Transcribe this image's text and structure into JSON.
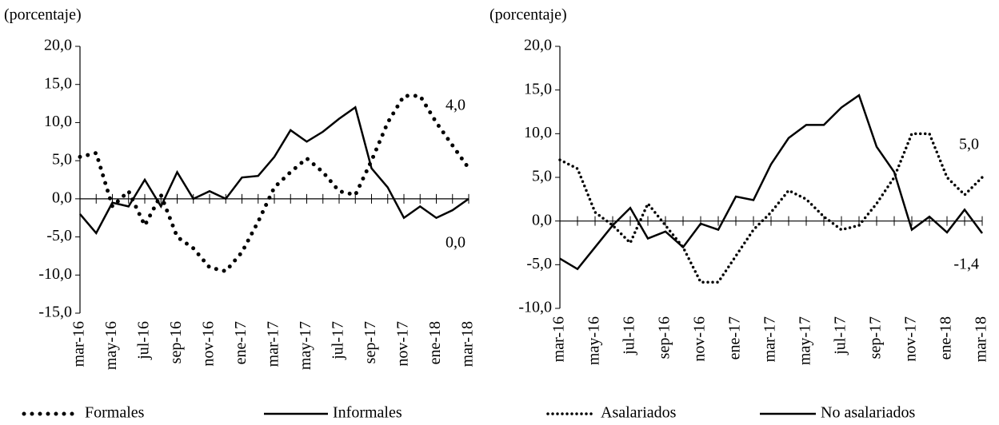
{
  "chart_data": [
    {
      "type": "line",
      "y_label": "(porcentaje)",
      "categories": [
        "mar-16",
        null,
        "may-16",
        null,
        "jul-16",
        null,
        "sep-16",
        null,
        "nov-16",
        null,
        "ene-17",
        null,
        "mar-17",
        null,
        "may-17",
        null,
        "jul-17",
        null,
        "sep-17",
        null,
        "nov-17",
        null,
        "ene-18",
        null,
        "mar-18"
      ],
      "ylim": [
        -15,
        20
      ],
      "yticks": [
        {
          "value": -15,
          "label": "-15,0"
        },
        {
          "value": -10,
          "label": "-10,0"
        },
        {
          "value": -5,
          "label": "-5,0"
        },
        {
          "value": 0,
          "label": "0,0"
        },
        {
          "value": 5,
          "label": "5,0"
        },
        {
          "value": 10,
          "label": "10,0"
        },
        {
          "value": 15,
          "label": "15,0"
        },
        {
          "value": 20,
          "label": "20,0"
        }
      ],
      "series": [
        {
          "name": "Formales",
          "color": "#000000",
          "style": "dotted",
          "values": [
            5.5,
            6.0,
            -1.0,
            1.0,
            -3.5,
            0.5,
            -5.0,
            -6.5,
            -9.0,
            -9.5,
            -7.0,
            -3.0,
            1.5,
            3.5,
            5.3,
            3.5,
            1.0,
            0.5,
            5.0,
            10.0,
            13.5,
            13.5,
            10.0,
            7.0,
            4.0
          ],
          "value_labels": [
            null,
            null,
            null,
            null,
            null,
            null,
            null,
            null,
            null,
            null,
            null,
            null,
            null,
            null,
            null,
            null,
            null,
            null,
            null,
            null,
            null,
            null,
            null,
            null,
            "4,0"
          ]
        },
        {
          "name": "Informales",
          "color": "#000000",
          "style": "solid",
          "values": [
            -2.0,
            -4.5,
            -0.5,
            -1.0,
            2.5,
            -1.0,
            3.5,
            0.0,
            1.0,
            0.0,
            2.8,
            3.0,
            5.5,
            9.0,
            7.5,
            8.8,
            10.5,
            12.0,
            4.0,
            1.5,
            -2.5,
            -1.0,
            -2.5,
            -1.5,
            0.0
          ],
          "value_labels": [
            null,
            null,
            null,
            null,
            null,
            null,
            null,
            null,
            null,
            null,
            null,
            null,
            null,
            null,
            null,
            null,
            null,
            null,
            null,
            null,
            null,
            null,
            null,
            null,
            "0,0"
          ]
        }
      ]
    },
    {
      "type": "line",
      "y_label": "(porcentaje)",
      "categories": [
        "mar-16",
        null,
        "may-16",
        null,
        "jul-16",
        null,
        "sep-16",
        null,
        "nov-16",
        null,
        "ene-17",
        null,
        "mar-17",
        null,
        "may-17",
        null,
        "jul-17",
        null,
        "sep-17",
        null,
        "nov-17",
        null,
        "ene-18",
        null,
        "mar-18"
      ],
      "ylim": [
        -10,
        20
      ],
      "yticks": [
        {
          "value": -10,
          "label": "-10,0"
        },
        {
          "value": -5,
          "label": "-5,0"
        },
        {
          "value": 0,
          "label": "0,0"
        },
        {
          "value": 5,
          "label": "5,0"
        },
        {
          "value": 10,
          "label": "10,0"
        },
        {
          "value": 15,
          "label": "15,0"
        },
        {
          "value": 20,
          "label": "20,0"
        }
      ],
      "series": [
        {
          "name": "Asalariados",
          "color": "#000000",
          "style": "dotted",
          "values": [
            7.0,
            6.0,
            1.0,
            -0.5,
            -2.5,
            2.0,
            -0.5,
            -3.0,
            -7.0,
            -7.0,
            -4.0,
            -1.0,
            1.0,
            3.5,
            2.5,
            0.5,
            -1.0,
            -0.5,
            2.0,
            5.0,
            10.0,
            10.0,
            5.0,
            3.0,
            5.0
          ],
          "value_labels": [
            null,
            null,
            null,
            null,
            null,
            null,
            null,
            null,
            null,
            null,
            null,
            null,
            null,
            null,
            null,
            null,
            null,
            null,
            null,
            null,
            null,
            null,
            null,
            null,
            "5,0"
          ]
        },
        {
          "name": "No asalariados",
          "color": "#000000",
          "style": "solid",
          "values": [
            -4.3,
            -5.5,
            -3.0,
            -0.5,
            1.5,
            -2.0,
            -1.2,
            -3.0,
            -0.3,
            -1.0,
            2.8,
            2.4,
            6.5,
            9.5,
            11.0,
            11.0,
            13.0,
            14.4,
            8.5,
            5.6,
            -1.0,
            0.5,
            -1.3,
            1.3,
            -1.4
          ],
          "value_labels": [
            null,
            null,
            null,
            null,
            null,
            null,
            null,
            null,
            null,
            null,
            null,
            null,
            null,
            null,
            null,
            null,
            null,
            null,
            null,
            null,
            null,
            null,
            null,
            null,
            "-1,4"
          ]
        }
      ]
    }
  ]
}
